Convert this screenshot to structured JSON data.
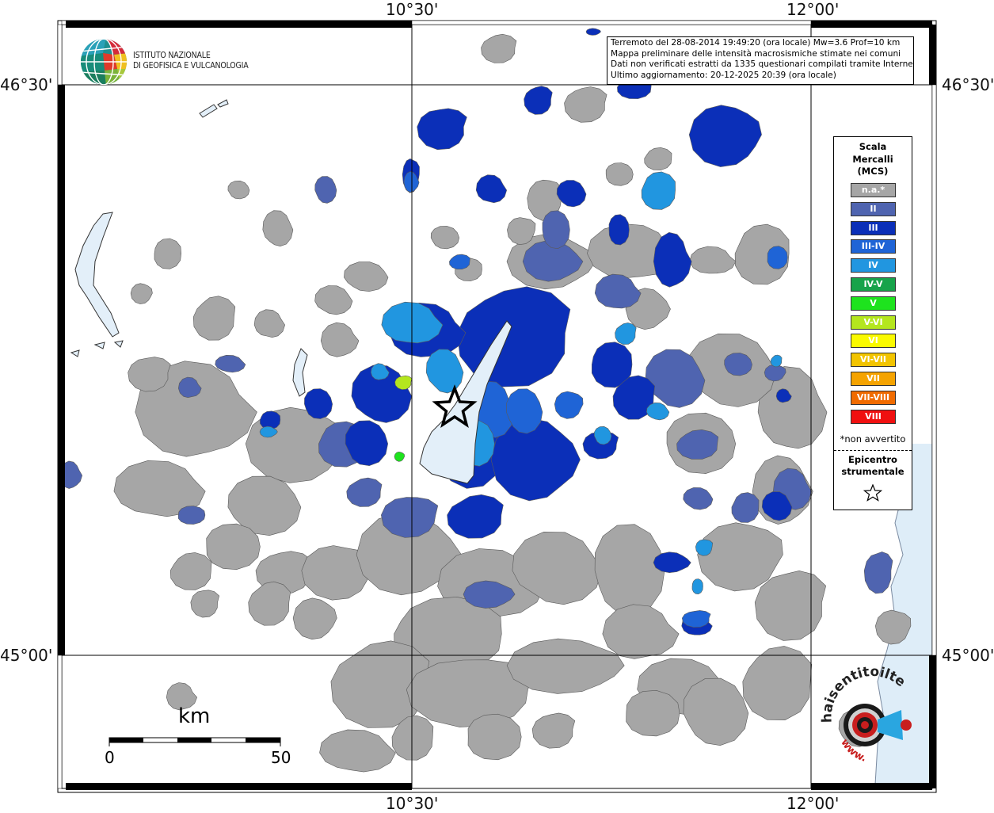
{
  "map": {
    "coords": {
      "top_left_lon": "10°30'",
      "top_right_lon": "12°00'",
      "bottom_left_lon": "10°30'",
      "bottom_right_lon": "12°00'",
      "left_top_lat": "46°30'",
      "left_bottom_lat": "45°00'",
      "right_top_lat": "46°30'",
      "right_bottom_lat": "45°00'"
    },
    "colors": {
      "na": "#a6a6a6",
      "II": "#4f64b0",
      "III": "#0b2fb8",
      "III-IV": "#1f64d6",
      "IV": "#2196e0",
      "IV-V": "#17a34a",
      "V": "#1ee31e",
      "V-VI": "#b4e61e",
      "VI": "#fafa00",
      "VI-VII": "#f2c400",
      "VII": "#f5a300",
      "VII-VIII": "#f06b00",
      "VIII": "#f01010",
      "water": "#deedf8",
      "lake": "#e3eff9"
    }
  },
  "logo": {
    "line1": "ISTITUTO NAZIONALE",
    "line2": "DI GEOFISICA E VULCANOLOGIA"
  },
  "info": {
    "line1": "Terremoto del 28-08-2014 19:49:20 (ora locale) Mw=3.6 Prof=10 km",
    "line2": "Mappa preliminare delle intensità macrosismiche stimate nei comuni",
    "line3": "Dati non verificati estratti da 1335 questionari compilati tramite Internet.",
    "line4": "Ultimo aggiornamento: 20-12-2025 20:39 (ora locale)"
  },
  "legend": {
    "title": "Scala\nMercalli\n(MCS)",
    "items": [
      {
        "label": "n.a.*",
        "color": "#a6a6a6"
      },
      {
        "label": "II",
        "color": "#4f64b0"
      },
      {
        "label": "III",
        "color": "#0b2fb8"
      },
      {
        "label": "III-IV",
        "color": "#1f64d6"
      },
      {
        "label": "IV",
        "color": "#2196e0"
      },
      {
        "label": "IV-V",
        "color": "#17a34a"
      },
      {
        "label": "V",
        "color": "#1ee31e"
      },
      {
        "label": "V-VI",
        "color": "#b4e61e"
      },
      {
        "label": "VI",
        "color": "#fafa00"
      },
      {
        "label": "VI-VII",
        "color": "#f2c400"
      },
      {
        "label": "VII",
        "color": "#f5a300"
      },
      {
        "label": "VII-VIII",
        "color": "#f06b00"
      },
      {
        "label": "VIII",
        "color": "#f01010"
      }
    ],
    "note": "*non avvertito",
    "epicenter": "Epicentro\nstrumentale"
  },
  "scalebar": {
    "unit": "km",
    "start": "0",
    "end": "50"
  },
  "brand": {
    "name": "haisentitoilterremoto.it",
    "url": "www."
  }
}
